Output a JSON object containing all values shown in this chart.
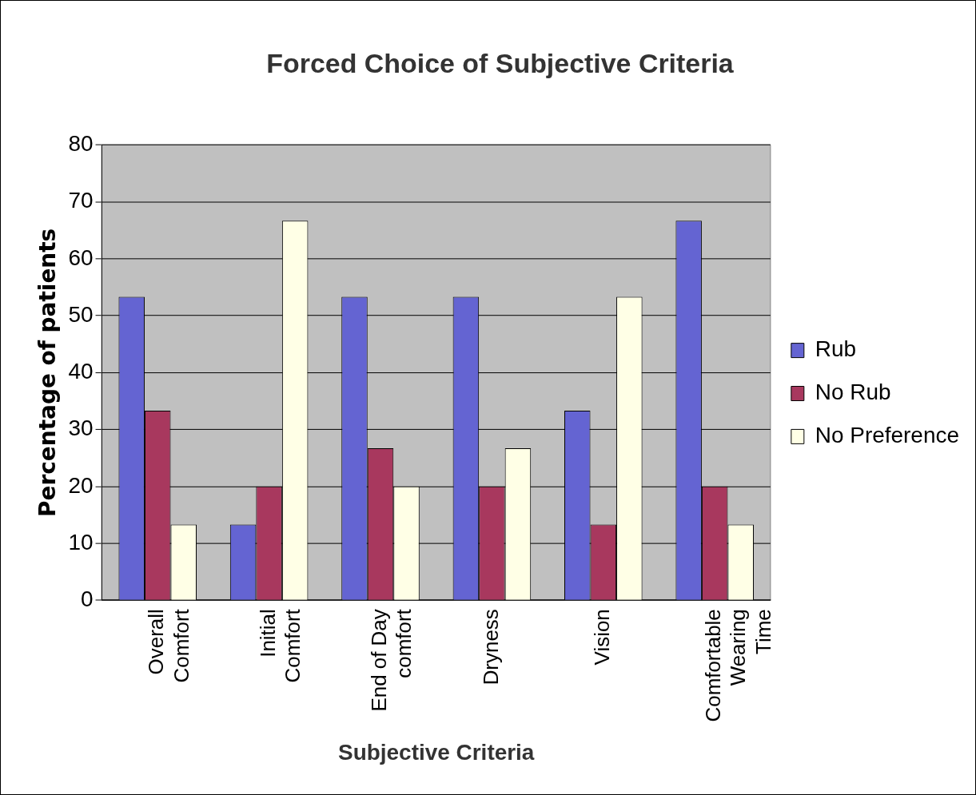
{
  "chart_data": {
    "type": "bar",
    "title": "Forced Choice of Subjective Criteria",
    "xlabel": "Subjective Criteria",
    "ylabel": "Percentage of patients",
    "categories": [
      "Overall\nComfort",
      "Initial\nComfort",
      "End of Day\ncomfort",
      "Dryness",
      "Vision",
      "Comfortable\nWearing\nTime"
    ],
    "series": [
      {
        "name": "Rub",
        "color": "#6464d2",
        "values": [
          53.3,
          13.3,
          53.3,
          53.3,
          33.3,
          66.7
        ]
      },
      {
        "name": "No Rub",
        "color": "#a8385e",
        "values": [
          33.3,
          20,
          26.7,
          20,
          13.3,
          20
        ]
      },
      {
        "name": "No Preference",
        "color": "#ffffe6",
        "values": [
          13.3,
          66.7,
          20,
          26.7,
          53.3,
          13.3
        ]
      }
    ],
    "ylim": [
      0,
      80
    ],
    "yticks": [
      0,
      10,
      20,
      30,
      40,
      50,
      60,
      70,
      80
    ],
    "grid": "y",
    "legend": "right"
  }
}
